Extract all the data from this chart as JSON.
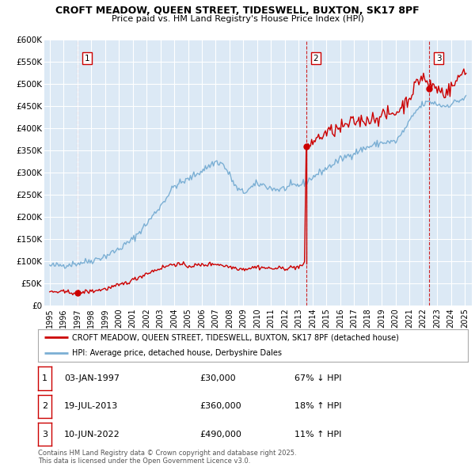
{
  "title1": "CROFT MEADOW, QUEEN STREET, TIDESWELL, BUXTON, SK17 8PF",
  "title2": "Price paid vs. HM Land Registry's House Price Index (HPI)",
  "bg_color": "#dce9f5",
  "grid_color": "#ffffff",
  "sale_color": "#cc0000",
  "hpi_color": "#7bafd4",
  "sale_label": "CROFT MEADOW, QUEEN STREET, TIDESWELL, BUXTON, SK17 8PF (detached house)",
  "hpi_label": "HPI: Average price, detached house, Derbyshire Dales",
  "ylabel_ticks": [
    "£0",
    "£50K",
    "£100K",
    "£150K",
    "£200K",
    "£250K",
    "£300K",
    "£350K",
    "£400K",
    "£450K",
    "£500K",
    "£550K",
    "£600K"
  ],
  "ytick_vals": [
    0,
    50000,
    100000,
    150000,
    200000,
    250000,
    300000,
    350000,
    400000,
    450000,
    500000,
    550000,
    600000
  ],
  "xmin": 1994.6,
  "xmax": 2025.5,
  "ymin": 0,
  "ymax": 600000,
  "annotations": [
    {
      "num": 1,
      "date": "03-JAN-1997",
      "price": "£30,000",
      "pct": "67% ↓ HPI",
      "x_year": 1997.0
    },
    {
      "num": 2,
      "date": "19-JUL-2013",
      "price": "£360,000",
      "pct": "18% ↑ HPI",
      "x_year": 2013.54
    },
    {
      "num": 3,
      "date": "10-JUN-2022",
      "price": "£490,000",
      "pct": "11% ↑ HPI",
      "x_year": 2022.44
    }
  ],
  "sale_price_1": 30000,
  "sale_price_2": 360000,
  "sale_price_3": 490000,
  "footer": "Contains HM Land Registry data © Crown copyright and database right 2025.\nThis data is licensed under the Open Government Licence v3.0."
}
